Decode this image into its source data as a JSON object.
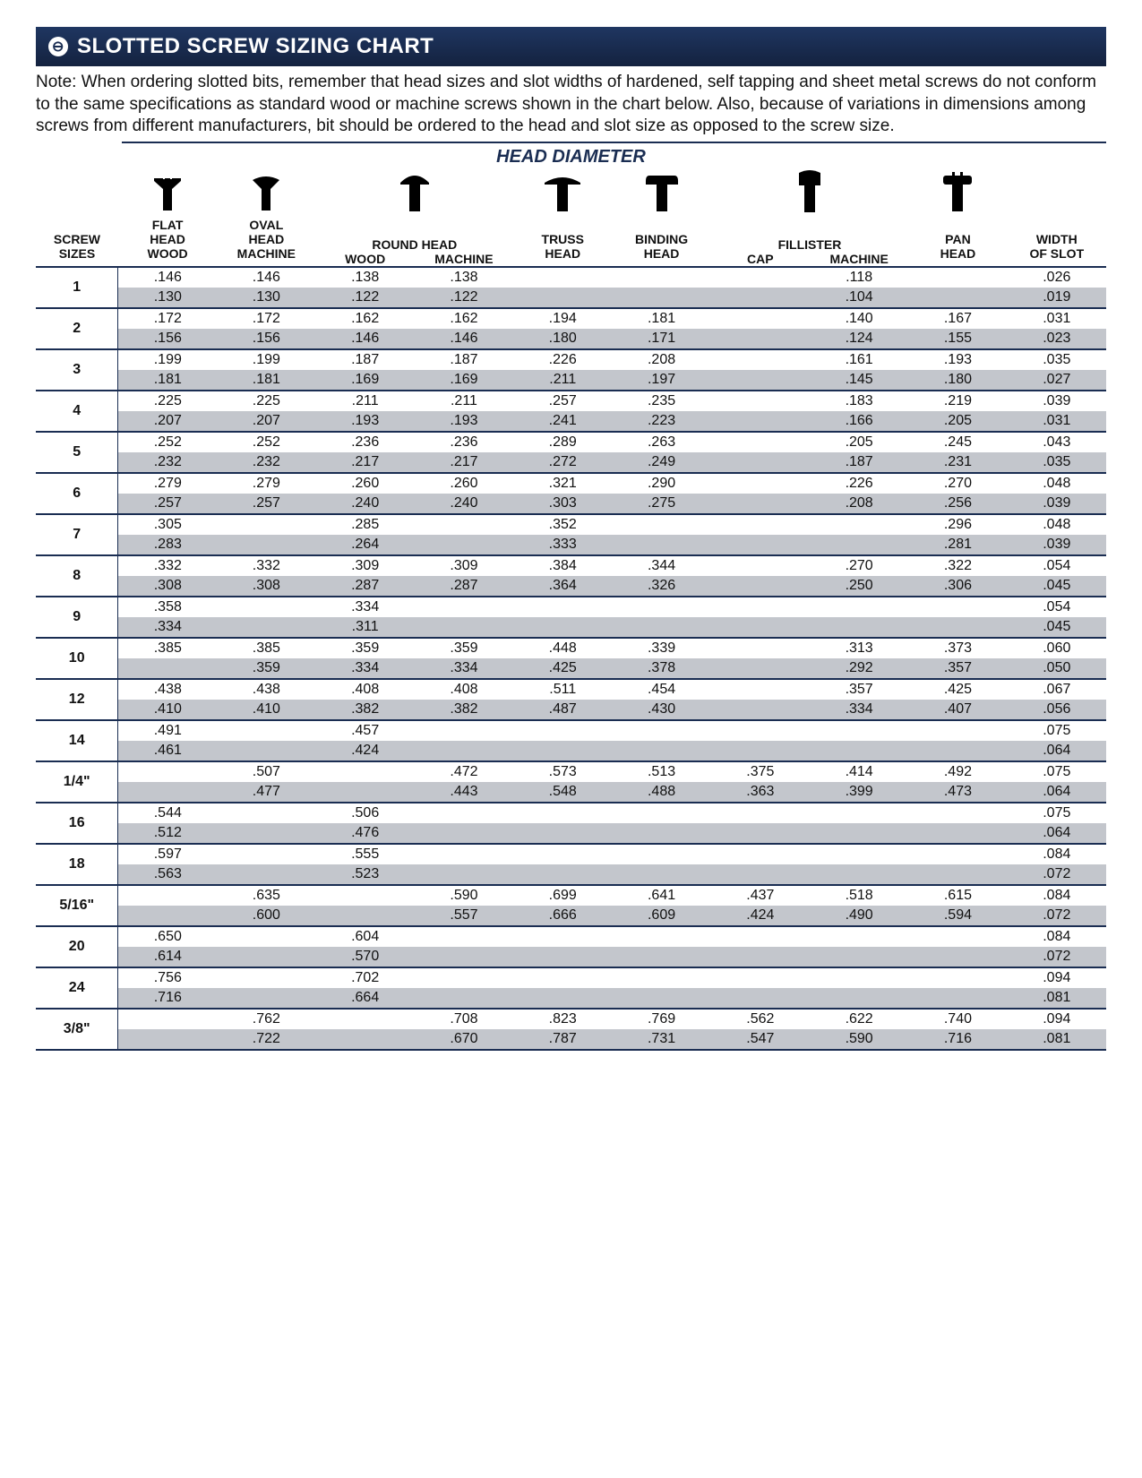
{
  "title": "SLOTTED SCREW SIZING CHART",
  "note": "Note: When ordering slotted bits, remember that head sizes and slot widths of hardened, self tapping and sheet metal screws do not conform to the same specifications as standard wood or machine screws shown in the chart below. Also, because of variations in dimensions among screws from different manufacturers, bit should be ordered to the head and slot size as opposed to the screw size.",
  "head_diameter_label": "HEAD DIAMETER",
  "columns": {
    "sizes": {
      "l1": "SCREW",
      "l2": "SIZES"
    },
    "flat": {
      "l1": "FLAT",
      "l2": "HEAD",
      "l3": "WOOD"
    },
    "oval": {
      "l1": "OVAL",
      "l2": "HEAD",
      "l3": "MACHINE"
    },
    "round_w": {
      "l1": "ROUND HEAD",
      "l2": "WOOD"
    },
    "round_m": {
      "l1": "",
      "l2": "MACHINE"
    },
    "truss": {
      "l1": "TRUSS",
      "l2": "HEAD"
    },
    "binding": {
      "l1": "BINDING",
      "l2": "HEAD"
    },
    "fil_cap": {
      "l1": "FILLISTER",
      "l2": "CAP"
    },
    "fil_mach": {
      "l1": "",
      "l2": "MACHINE"
    },
    "pan": {
      "l1": "PAN",
      "l2": "HEAD"
    },
    "slot": {
      "l1": "WIDTH",
      "l2": "OF SLOT"
    }
  },
  "rows": [
    {
      "size": "1",
      "a": [
        ".146",
        ".146",
        ".138",
        ".138",
        "",
        "",
        "",
        ".118",
        "",
        ".026"
      ],
      "b": [
        ".130",
        ".130",
        ".122",
        ".122",
        "",
        "",
        "",
        ".104",
        "",
        ".019"
      ]
    },
    {
      "size": "2",
      "a": [
        ".172",
        ".172",
        ".162",
        ".162",
        ".194",
        ".181",
        "",
        ".140",
        ".167",
        ".031"
      ],
      "b": [
        ".156",
        ".156",
        ".146",
        ".146",
        ".180",
        ".171",
        "",
        ".124",
        ".155",
        ".023"
      ]
    },
    {
      "size": "3",
      "a": [
        ".199",
        ".199",
        ".187",
        ".187",
        ".226",
        ".208",
        "",
        ".161",
        ".193",
        ".035"
      ],
      "b": [
        ".181",
        ".181",
        ".169",
        ".169",
        ".211",
        ".197",
        "",
        ".145",
        ".180",
        ".027"
      ]
    },
    {
      "size": "4",
      "a": [
        ".225",
        ".225",
        ".211",
        ".211",
        ".257",
        ".235",
        "",
        ".183",
        ".219",
        ".039"
      ],
      "b": [
        ".207",
        ".207",
        ".193",
        ".193",
        ".241",
        ".223",
        "",
        ".166",
        ".205",
        ".031"
      ]
    },
    {
      "size": "5",
      "a": [
        ".252",
        ".252",
        ".236",
        ".236",
        ".289",
        ".263",
        "",
        ".205",
        ".245",
        ".043"
      ],
      "b": [
        ".232",
        ".232",
        ".217",
        ".217",
        ".272",
        ".249",
        "",
        ".187",
        ".231",
        ".035"
      ]
    },
    {
      "size": "6",
      "a": [
        ".279",
        ".279",
        ".260",
        ".260",
        ".321",
        ".290",
        "",
        ".226",
        ".270",
        ".048"
      ],
      "b": [
        ".257",
        ".257",
        ".240",
        ".240",
        ".303",
        ".275",
        "",
        ".208",
        ".256",
        ".039"
      ]
    },
    {
      "size": "7",
      "a": [
        ".305",
        "",
        ".285",
        "",
        ".352",
        "",
        "",
        "",
        ".296",
        ".048"
      ],
      "b": [
        ".283",
        "",
        ".264",
        "",
        ".333",
        "",
        "",
        "",
        ".281",
        ".039"
      ]
    },
    {
      "size": "8",
      "a": [
        ".332",
        ".332",
        ".309",
        ".309",
        ".384",
        ".344",
        "",
        ".270",
        ".322",
        ".054"
      ],
      "b": [
        ".308",
        ".308",
        ".287",
        ".287",
        ".364",
        ".326",
        "",
        ".250",
        ".306",
        ".045"
      ]
    },
    {
      "size": "9",
      "a": [
        ".358",
        "",
        ".334",
        "",
        "",
        "",
        "",
        "",
        "",
        ".054"
      ],
      "b": [
        ".334",
        "",
        ".311",
        "",
        "",
        "",
        "",
        "",
        "",
        ".045"
      ]
    },
    {
      "size": "10",
      "a": [
        ".385",
        ".385",
        ".359",
        ".359",
        ".448",
        ".339",
        "",
        ".313",
        ".373",
        ".060"
      ],
      "b": [
        "",
        ".359",
        ".334",
        ".334",
        ".425",
        ".378",
        "",
        ".292",
        ".357",
        ".050"
      ]
    },
    {
      "size": "12",
      "a": [
        ".438",
        ".438",
        ".408",
        ".408",
        ".511",
        ".454",
        "",
        ".357",
        ".425",
        ".067"
      ],
      "b": [
        ".410",
        ".410",
        ".382",
        ".382",
        ".487",
        ".430",
        "",
        ".334",
        ".407",
        ".056"
      ]
    },
    {
      "size": "14",
      "a": [
        ".491",
        "",
        ".457",
        "",
        "",
        "",
        "",
        "",
        "",
        ".075"
      ],
      "b": [
        ".461",
        "",
        ".424",
        "",
        "",
        "",
        "",
        "",
        "",
        ".064"
      ]
    },
    {
      "size": "1/4\"",
      "a": [
        "",
        ".507",
        "",
        ".472",
        ".573",
        ".513",
        ".375",
        ".414",
        ".492",
        ".075"
      ],
      "b": [
        "",
        ".477",
        "",
        ".443",
        ".548",
        ".488",
        ".363",
        ".399",
        ".473",
        ".064"
      ]
    },
    {
      "size": "16",
      "a": [
        ".544",
        "",
        ".506",
        "",
        "",
        "",
        "",
        "",
        "",
        ".075"
      ],
      "b": [
        ".512",
        "",
        ".476",
        "",
        "",
        "",
        "",
        "",
        "",
        ".064"
      ]
    },
    {
      "size": "18",
      "a": [
        ".597",
        "",
        ".555",
        "",
        "",
        "",
        "",
        "",
        "",
        ".084"
      ],
      "b": [
        ".563",
        "",
        ".523",
        "",
        "",
        "",
        "",
        "",
        "",
        ".072"
      ]
    },
    {
      "size": "5/16\"",
      "a": [
        "",
        ".635",
        "",
        ".590",
        ".699",
        ".641",
        ".437",
        ".518",
        ".615",
        ".084"
      ],
      "b": [
        "",
        ".600",
        "",
        ".557",
        ".666",
        ".609",
        ".424",
        ".490",
        ".594",
        ".072"
      ]
    },
    {
      "size": "20",
      "a": [
        ".650",
        "",
        ".604",
        "",
        "",
        "",
        "",
        "",
        "",
        ".084"
      ],
      "b": [
        ".614",
        "",
        ".570",
        "",
        "",
        "",
        "",
        "",
        "",
        ".072"
      ]
    },
    {
      "size": "24",
      "a": [
        ".756",
        "",
        ".702",
        "",
        "",
        "",
        "",
        "",
        "",
        ".094"
      ],
      "b": [
        ".716",
        "",
        ".664",
        "",
        "",
        "",
        "",
        "",
        "",
        ".081"
      ]
    },
    {
      "size": "3/8\"",
      "a": [
        "",
        ".762",
        "",
        ".708",
        ".823",
        ".769",
        ".562",
        ".622",
        ".740",
        ".094"
      ],
      "b": [
        "",
        ".722",
        "",
        ".670",
        ".787",
        ".731",
        ".547",
        ".590",
        ".716",
        ".081"
      ]
    }
  ],
  "colors": {
    "brand": "#1a2d52",
    "row_gray": "#c3c6cc",
    "text": "#111"
  }
}
